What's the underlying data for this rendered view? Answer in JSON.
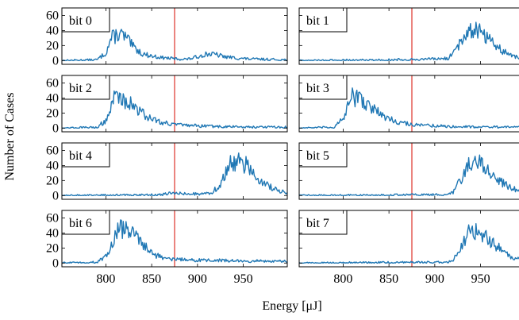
{
  "chart_data": {
    "type": "line",
    "layout": "4x2 grid of small multiples, shared x axis",
    "ylabel": "Number of Cases",
    "xlabel": "Energy [μJ]",
    "xlim": [
      752,
      998
    ],
    "ylim": [
      -5,
      70
    ],
    "x_ticks": [
      800,
      850,
      900,
      950
    ],
    "y_ticks": [
      0,
      20,
      40,
      60
    ],
    "threshold": {
      "x": 875,
      "color": "#e0413a"
    },
    "line_color": "#1f77b4",
    "grid": false,
    "panels": [
      {
        "label": "bit 0",
        "profile": [
          [
            752,
            0
          ],
          [
            790,
            1
          ],
          [
            800,
            10
          ],
          [
            806,
            30
          ],
          [
            815,
            36
          ],
          [
            822,
            30
          ],
          [
            830,
            18
          ],
          [
            840,
            9
          ],
          [
            850,
            6
          ],
          [
            860,
            4
          ],
          [
            870,
            3
          ],
          [
            880,
            2
          ],
          [
            890,
            2
          ],
          [
            900,
            5
          ],
          [
            910,
            9
          ],
          [
            920,
            8
          ],
          [
            930,
            5
          ],
          [
            945,
            3
          ],
          [
            960,
            2
          ],
          [
            998,
            1
          ]
        ]
      },
      {
        "label": "bit 1",
        "profile": [
          [
            752,
            0
          ],
          [
            850,
            1
          ],
          [
            900,
            2
          ],
          [
            915,
            3
          ],
          [
            925,
            18
          ],
          [
            935,
            38
          ],
          [
            945,
            44
          ],
          [
            955,
            34
          ],
          [
            965,
            22
          ],
          [
            975,
            12
          ],
          [
            985,
            6
          ],
          [
            998,
            2
          ]
        ]
      },
      {
        "label": "bit 2",
        "profile": [
          [
            752,
            0
          ],
          [
            790,
            1
          ],
          [
            800,
            10
          ],
          [
            810,
            42
          ],
          [
            820,
            38
          ],
          [
            830,
            30
          ],
          [
            845,
            15
          ],
          [
            860,
            8
          ],
          [
            880,
            4
          ],
          [
            920,
            2
          ],
          [
            998,
            1
          ]
        ]
      },
      {
        "label": "bit 3",
        "profile": [
          [
            752,
            0
          ],
          [
            790,
            1
          ],
          [
            800,
            12
          ],
          [
            810,
            42
          ],
          [
            820,
            38
          ],
          [
            830,
            28
          ],
          [
            845,
            15
          ],
          [
            860,
            8
          ],
          [
            880,
            4
          ],
          [
            920,
            2
          ],
          [
            998,
            1
          ]
        ]
      },
      {
        "label": "bit 4",
        "profile": [
          [
            752,
            0
          ],
          [
            860,
            1
          ],
          [
            870,
            3
          ],
          [
            880,
            3
          ],
          [
            900,
            2
          ],
          [
            915,
            3
          ],
          [
            925,
            15
          ],
          [
            935,
            40
          ],
          [
            945,
            48
          ],
          [
            955,
            38
          ],
          [
            965,
            25
          ],
          [
            975,
            14
          ],
          [
            985,
            8
          ],
          [
            998,
            3
          ]
        ]
      },
      {
        "label": "bit 5",
        "profile": [
          [
            752,
            0
          ],
          [
            880,
            1
          ],
          [
            910,
            1
          ],
          [
            920,
            4
          ],
          [
            930,
            25
          ],
          [
            940,
            47
          ],
          [
            950,
            43
          ],
          [
            960,
            30
          ],
          [
            970,
            20
          ],
          [
            980,
            12
          ],
          [
            990,
            7
          ],
          [
            998,
            4
          ]
        ]
      },
      {
        "label": "bit 6",
        "profile": [
          [
            752,
            0
          ],
          [
            790,
            1
          ],
          [
            800,
            8
          ],
          [
            808,
            30
          ],
          [
            815,
            48
          ],
          [
            825,
            43
          ],
          [
            835,
            32
          ],
          [
            845,
            20
          ],
          [
            855,
            10
          ],
          [
            870,
            5
          ],
          [
            900,
            4
          ],
          [
            940,
            3
          ],
          [
            998,
            2
          ]
        ]
      },
      {
        "label": "bit 7",
        "profile": [
          [
            752,
            0
          ],
          [
            880,
            1
          ],
          [
            910,
            1
          ],
          [
            920,
            3
          ],
          [
            930,
            25
          ],
          [
            940,
            45
          ],
          [
            950,
            42
          ],
          [
            960,
            30
          ],
          [
            970,
            20
          ],
          [
            980,
            10
          ],
          [
            990,
            6
          ],
          [
            998,
            3
          ]
        ]
      }
    ]
  }
}
